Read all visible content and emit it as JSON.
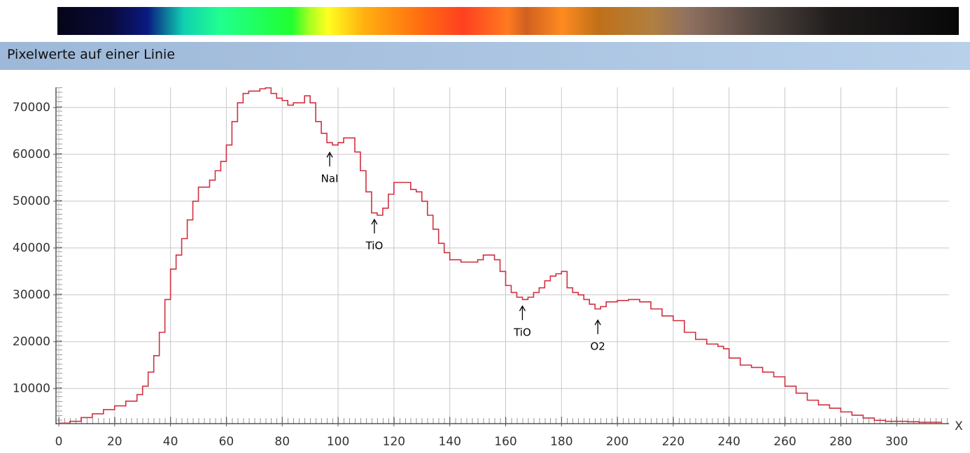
{
  "chart_data": {
    "type": "line",
    "title": "Pixelwerte auf einer Linie",
    "xlabel": "X",
    "x": [
      0,
      4,
      8,
      12,
      16,
      20,
      24,
      28,
      30,
      32,
      34,
      36,
      38,
      40,
      42,
      44,
      46,
      48,
      50,
      54,
      56,
      58,
      60,
      62,
      64,
      66,
      68,
      70,
      72,
      74,
      76,
      78,
      80,
      82,
      84,
      86,
      88,
      90,
      92,
      94,
      96,
      98,
      100,
      102,
      104,
      106,
      108,
      110,
      112,
      114,
      116,
      118,
      120,
      122,
      124,
      126,
      128,
      130,
      132,
      134,
      136,
      138,
      140,
      144,
      148,
      150,
      152,
      154,
      156,
      158,
      160,
      162,
      164,
      166,
      168,
      170,
      172,
      174,
      176,
      178,
      180,
      182,
      184,
      186,
      188,
      190,
      192,
      194,
      196,
      200,
      204,
      208,
      212,
      216,
      220,
      224,
      228,
      232,
      236,
      238,
      240,
      244,
      248,
      252,
      256,
      260,
      264,
      268,
      272,
      276,
      280,
      284,
      288,
      292,
      296,
      300,
      304,
      308,
      312,
      316
    ],
    "series": [
      {
        "name": "Pixelwerte",
        "color": "#d0303f",
        "values": [
          2600,
          3000,
          3800,
          4600,
          5500,
          6300,
          7300,
          8700,
          10500,
          13500,
          17000,
          22000,
          29000,
          35500,
          38500,
          42000,
          46000,
          50000,
          53000,
          54500,
          56500,
          58500,
          62000,
          67000,
          71000,
          73000,
          73500,
          73500,
          74000,
          74200,
          73000,
          72000,
          71500,
          70500,
          71000,
          71000,
          72500,
          71000,
          67000,
          64500,
          62500,
          62000,
          62500,
          63500,
          63500,
          60500,
          56500,
          52000,
          47500,
          47000,
          48500,
          51500,
          54000,
          54000,
          54000,
          52500,
          52000,
          50000,
          47000,
          44000,
          41000,
          39000,
          37500,
          37000,
          37000,
          37500,
          38500,
          38500,
          37500,
          35000,
          32000,
          30500,
          29500,
          29000,
          29500,
          30500,
          31500,
          33000,
          34000,
          34500,
          35000,
          31500,
          30500,
          30000,
          29000,
          28000,
          27000,
          27500,
          28500,
          28800,
          29000,
          28500,
          27000,
          25500,
          24500,
          22000,
          20500,
          19500,
          19000,
          18500,
          16500,
          15000,
          14500,
          13500,
          12500,
          10500,
          9000,
          7500,
          6500,
          5800,
          5000,
          4300,
          3700,
          3200,
          3000,
          3000,
          2900,
          2800,
          2800,
          2700
        ]
      }
    ],
    "xlim": [
      0,
      318
    ],
    "ylim": [
      2500,
      74300
    ],
    "xticks": [
      0,
      20,
      40,
      60,
      80,
      100,
      120,
      140,
      160,
      180,
      200,
      220,
      240,
      260,
      280,
      300
    ],
    "yticks": [
      10000,
      20000,
      30000,
      40000,
      50000,
      60000,
      70000
    ],
    "grid": true,
    "annotations": [
      {
        "text": "NaI",
        "x": 97,
        "y": 60400
      },
      {
        "text": "TiO",
        "x": 113,
        "y": 46100
      },
      {
        "text": "TiO",
        "x": 166,
        "y": 27600
      },
      {
        "text": "O2",
        "x": 193,
        "y": 24600
      }
    ]
  }
}
